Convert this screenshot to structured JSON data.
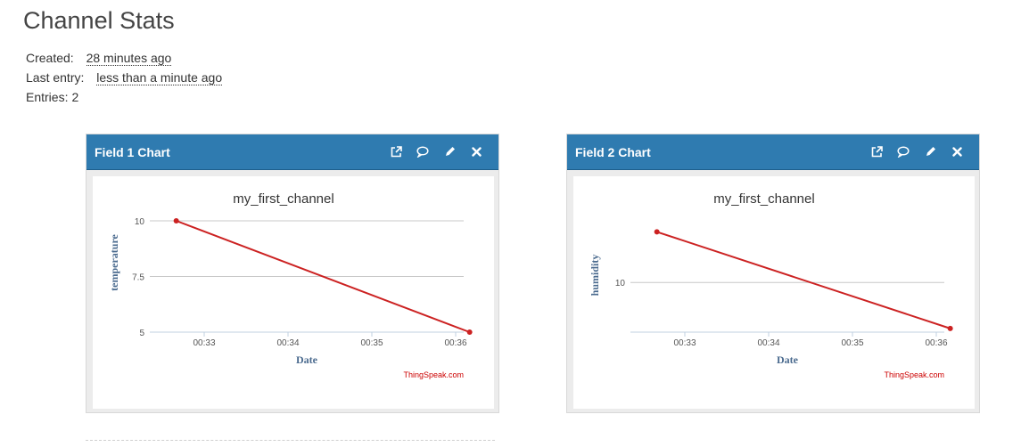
{
  "page": {
    "title": "Channel Stats"
  },
  "stats": {
    "created_label": "Created:",
    "created_value": "28 minutes ago",
    "last_entry_label": "Last entry:",
    "last_entry_value": "less than a minute ago",
    "entries_label": "Entries:",
    "entries_value": "2"
  },
  "panels": [
    {
      "title": "Field 1 Chart",
      "icons": [
        "external-link-icon",
        "comment-icon",
        "pencil-icon",
        "close-icon"
      ]
    },
    {
      "title": "Field 2 Chart",
      "icons": [
        "external-link-icon",
        "comment-icon",
        "pencil-icon",
        "close-icon"
      ]
    }
  ],
  "colors": {
    "header": "#2f7bb0",
    "line": "#cc2222",
    "axis_label": "#4a6a8e",
    "credit": "#cc0000"
  },
  "chart_data": [
    {
      "type": "line",
      "title": "my_first_channel",
      "xlabel": "Date",
      "ylabel": "temperature",
      "x_ticks": [
        "00:33",
        "00:34",
        "00:35",
        "00:36"
      ],
      "y_ticks": [
        "5",
        "7.5",
        "10"
      ],
      "ylim": [
        5,
        10
      ],
      "grid": true,
      "credit": "ThingSpeak.com",
      "series": [
        {
          "points": [
            {
              "x": "00:32:40",
              "y": 10
            },
            {
              "x": "00:36:10",
              "y": 5
            }
          ]
        }
      ]
    },
    {
      "type": "line",
      "title": "my_first_channel",
      "xlabel": "Date",
      "ylabel": "humidity",
      "x_ticks": [
        "00:33",
        "00:34",
        "00:35",
        "00:36"
      ],
      "y_ticks": [
        "10"
      ],
      "ylim": [
        9.46,
        10.67
      ],
      "grid": true,
      "credit": "ThingSpeak.com",
      "series": [
        {
          "points": [
            {
              "x": "00:32:40",
              "y": 10.55
            },
            {
              "x": "00:36:10",
              "y": 9.5
            }
          ]
        }
      ]
    }
  ]
}
